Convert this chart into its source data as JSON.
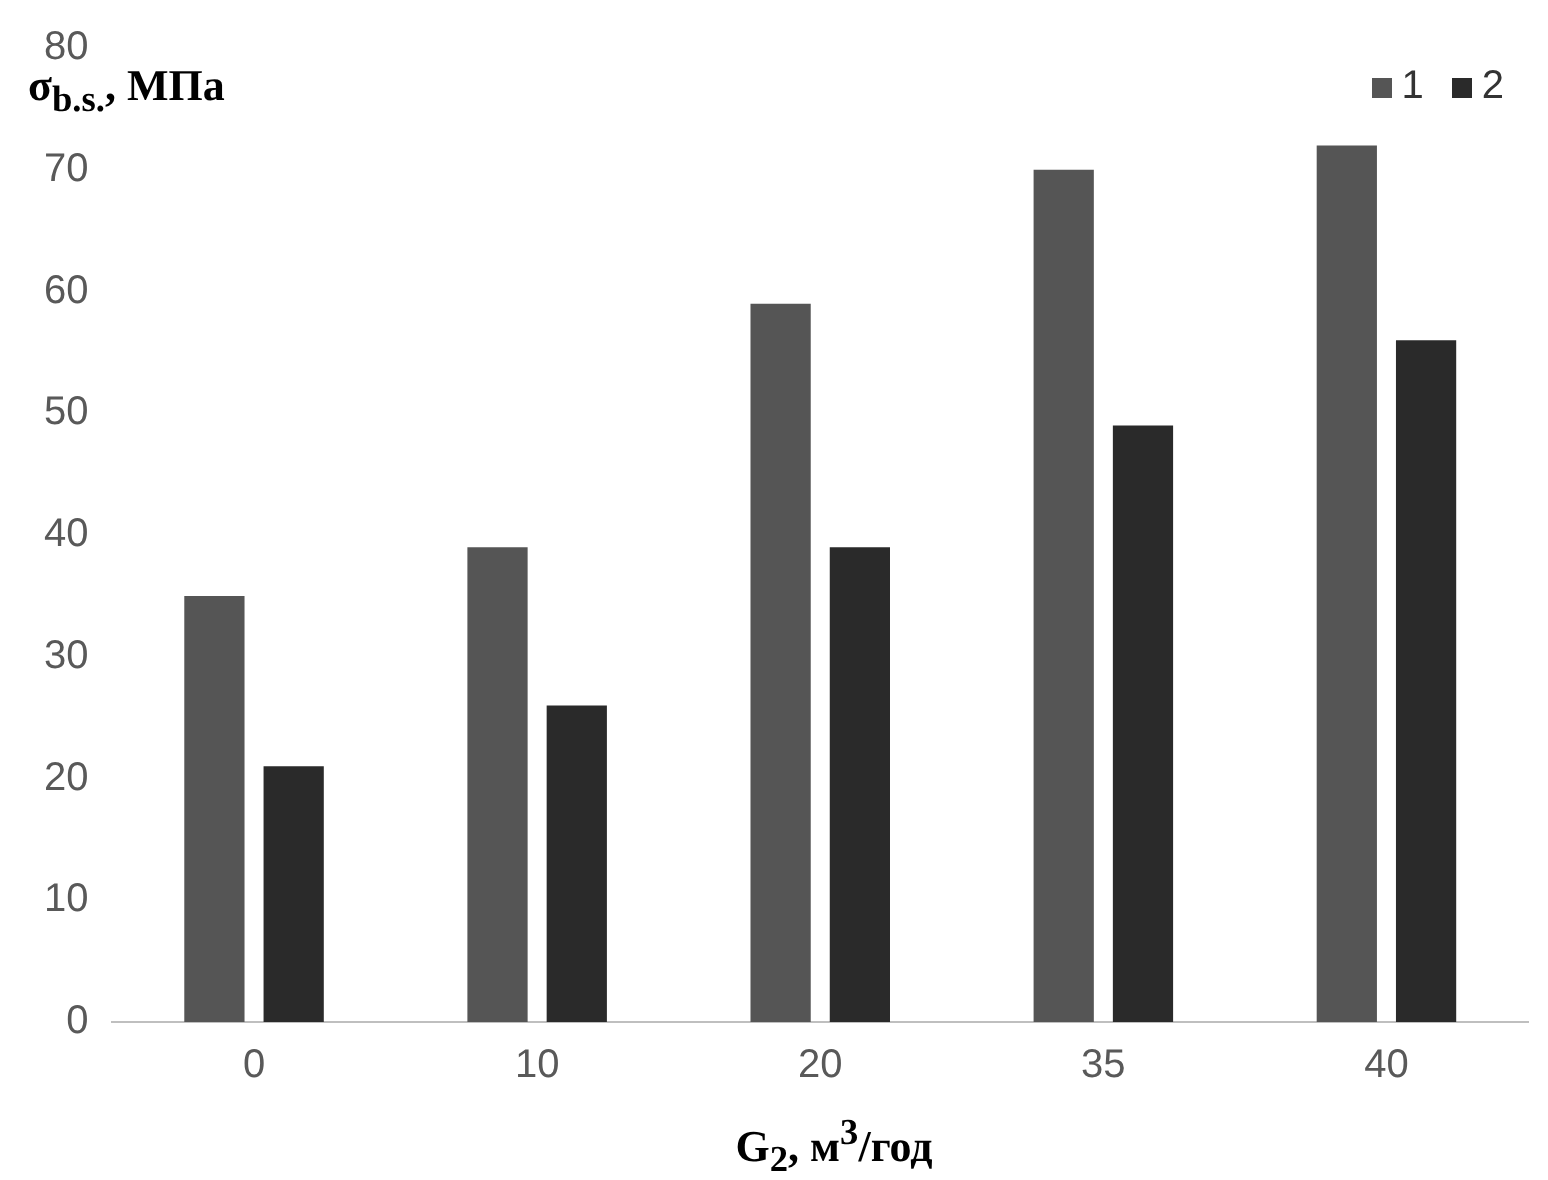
{
  "chart_data": {
    "type": "bar",
    "ylabel": "σ$_{b.s.}$, МПа",
    "xlabel": "G$_{2}$, м$^{3}$/год",
    "categories": [
      "0",
      "10",
      "20",
      "35",
      "40"
    ],
    "series": [
      {
        "name": "1",
        "color": "#555555",
        "values": [
          35,
          39,
          59,
          70,
          72
        ]
      },
      {
        "name": "2",
        "color": "#2a2a2a",
        "values": [
          21,
          26,
          39,
          49,
          56
        ]
      }
    ],
    "ylim": [
      0,
      80
    ],
    "yticks": [
      0,
      10,
      20,
      30,
      40,
      50,
      60,
      70,
      80
    ],
    "legend": "top right"
  }
}
